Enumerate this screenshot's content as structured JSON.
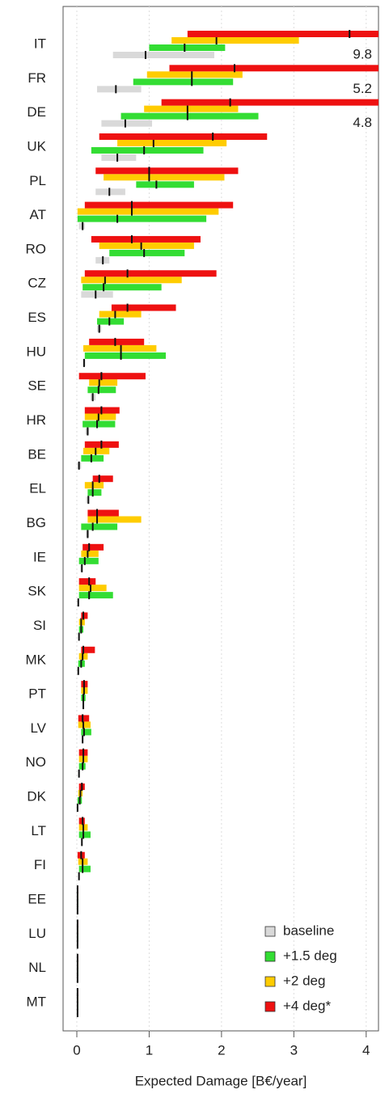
{
  "chart_data": {
    "type": "range",
    "xlabel": "Expected Damage [B€/year]",
    "categories": [
      "IT",
      "FR",
      "DE",
      "UK",
      "PL",
      "AT",
      "RO",
      "CZ",
      "ES",
      "HU",
      "SE",
      "HR",
      "BE",
      "EL",
      "BG",
      "IE",
      "SK",
      "SI",
      "MK",
      "PT",
      "LV",
      "NO",
      "DK",
      "LT",
      "FI",
      "EE",
      "LU",
      "NL",
      "MT"
    ],
    "xlim": [
      -0.19,
      4.17
    ],
    "xticks": [
      0,
      1,
      2,
      3,
      4
    ],
    "grid": true,
    "legend": "lower right",
    "series": [
      {
        "name": "baseline",
        "color": "#d9d9d9",
        "low": [
          0.5,
          0.28,
          0.34,
          0.34,
          0.26,
          0.03,
          0.26,
          0.06,
          0.28,
          0.09,
          0.19,
          0.12,
          0.01,
          0.13,
          0.13,
          0.05,
          0.01,
          0.02,
          0.01,
          0.08,
          0.07,
          0.02,
          0.01,
          0.06,
          0.02,
          0,
          0,
          0,
          0
        ],
        "median": [
          0.95,
          0.54,
          0.67,
          0.56,
          0.45,
          0.08,
          0.36,
          0.26,
          0.31,
          0.1,
          0.22,
          0.15,
          0.03,
          0.16,
          0.15,
          0.07,
          0.02,
          0.03,
          0.02,
          0.09,
          0.08,
          0.03,
          0.01,
          0.07,
          0.03,
          0.01,
          0.01,
          0.01,
          0.01
        ],
        "high": [
          1.9,
          0.89,
          1.04,
          0.82,
          0.67,
          0.11,
          0.45,
          0.5,
          0.34,
          0.12,
          0.26,
          0.17,
          0.06,
          0.17,
          0.17,
          0.08,
          0.03,
          0.04,
          0.03,
          0.1,
          0.09,
          0.04,
          0.02,
          0.08,
          0.04,
          0.02,
          0.02,
          0.02,
          0.02
        ]
      },
      {
        "name": "+1.5 deg",
        "color": "#33dd33",
        "low": [
          1.0,
          0.78,
          0.61,
          0.2,
          0.82,
          0.01,
          0.45,
          0.08,
          0.28,
          0.11,
          0.15,
          0.08,
          0.06,
          0.15,
          0.06,
          0.03,
          0.03,
          0.03,
          0.02,
          0.06,
          0.06,
          0.03,
          0.01,
          0.03,
          0.03,
          0,
          0,
          0,
          0
        ],
        "median": [
          1.49,
          1.59,
          1.53,
          0.93,
          1.1,
          0.56,
          0.93,
          0.37,
          0.45,
          0.61,
          0.3,
          0.28,
          0.2,
          0.22,
          0.22,
          0.11,
          0.17,
          0.06,
          0.06,
          0.09,
          0.1,
          0.08,
          0.04,
          0.09,
          0.08,
          0.01,
          0.01,
          0.01,
          0.01
        ],
        "high": [
          2.05,
          2.16,
          2.51,
          1.75,
          1.62,
          1.79,
          1.49,
          1.17,
          0.65,
          1.23,
          0.54,
          0.53,
          0.37,
          0.34,
          0.56,
          0.3,
          0.5,
          0.09,
          0.11,
          0.12,
          0.2,
          0.12,
          0.07,
          0.19,
          0.19,
          0.02,
          0.02,
          0.02,
          0.02
        ]
      },
      {
        "name": "+2 deg",
        "color": "#ffcc00",
        "low": [
          1.31,
          0.97,
          0.93,
          0.56,
          0.37,
          0.01,
          0.31,
          0.06,
          0.31,
          0.09,
          0.17,
          0.11,
          0.09,
          0.11,
          0.15,
          0.06,
          0.03,
          0.03,
          0.03,
          0.06,
          0.02,
          0.03,
          0.02,
          0.03,
          0.02,
          0,
          0,
          0,
          0
        ],
        "median": [
          1.93,
          1.59,
          1.53,
          1.06,
          1.0,
          0.76,
          0.89,
          0.39,
          0.53,
          0.61,
          0.31,
          0.3,
          0.26,
          0.22,
          0.28,
          0.15,
          0.19,
          0.06,
          0.08,
          0.1,
          0.09,
          0.09,
          0.05,
          0.09,
          0.08,
          0.01,
          0.01,
          0.01,
          0.01
        ],
        "high": [
          3.07,
          2.29,
          2.23,
          2.07,
          2.04,
          1.96,
          1.62,
          1.45,
          0.89,
          1.1,
          0.56,
          0.54,
          0.45,
          0.37,
          0.89,
          0.3,
          0.41,
          0.11,
          0.15,
          0.15,
          0.19,
          0.15,
          0.08,
          0.15,
          0.15,
          0.02,
          0.02,
          0.02,
          0.02
        ]
      },
      {
        "name": "+4 deg*",
        "color": "#ee1111",
        "low": [
          1.53,
          1.28,
          1.17,
          0.31,
          0.26,
          0.11,
          0.2,
          0.11,
          0.48,
          0.17,
          0.03,
          0.11,
          0.11,
          0.22,
          0.15,
          0.08,
          0.03,
          0.06,
          0.06,
          0.06,
          0.02,
          0.03,
          0.03,
          0.03,
          0.01,
          0,
          0,
          0,
          0
        ],
        "median": [
          3.77,
          2.18,
          2.12,
          1.88,
          1.0,
          0.76,
          0.76,
          0.7,
          0.7,
          0.53,
          0.34,
          0.34,
          0.34,
          0.31,
          0.28,
          0.17,
          0.17,
          0.09,
          0.09,
          0.1,
          0.08,
          0.09,
          0.07,
          0.08,
          0.06,
          0.01,
          0.01,
          0.01,
          0.01
        ],
        "high": [
          9.8,
          5.2,
          4.8,
          2.63,
          2.23,
          2.16,
          1.71,
          1.93,
          1.37,
          0.93,
          0.95,
          0.59,
          0.58,
          0.5,
          0.58,
          0.37,
          0.26,
          0.15,
          0.25,
          0.15,
          0.17,
          0.15,
          0.11,
          0.11,
          0.11,
          0.02,
          0.02,
          0.02,
          0.02
        ]
      }
    ]
  }
}
